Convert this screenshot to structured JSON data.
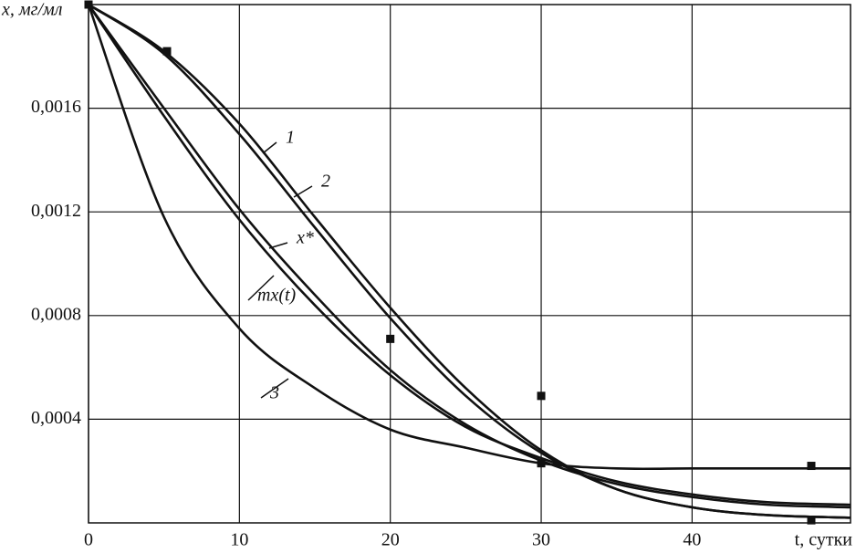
{
  "chart_data": {
    "type": "line",
    "x_label": "t, сутки",
    "y_label": "x, мг/мл",
    "xlim": [
      0,
      50.5
    ],
    "ylim": [
      0,
      0.002
    ],
    "xticks": [
      0,
      10,
      20,
      30,
      40
    ],
    "yticks": [
      {
        "value": 0.0004,
        "label": "0,0004"
      },
      {
        "value": 0.0008,
        "label": "0,0008"
      },
      {
        "value": 0.0012,
        "label": "0,0012"
      },
      {
        "value": 0.0016,
        "label": "0,0016"
      }
    ],
    "grid": true,
    "x": [
      0,
      5,
      10,
      15,
      20,
      25,
      30,
      35,
      40,
      45,
      50.5
    ],
    "series": [
      {
        "name": "1",
        "color": "#111111",
        "values": [
          0.002,
          0.00182,
          0.00154,
          0.00118,
          0.00083,
          0.00052,
          0.00028,
          0.00013,
          6e-05,
          3e-05,
          2e-05
        ]
      },
      {
        "name": "2",
        "color": "#111111",
        "values": [
          0.002,
          0.00181,
          0.0015,
          0.00114,
          0.00079,
          0.00049,
          0.00027,
          0.00013,
          6e-05,
          3e-05,
          2e-05
        ]
      },
      {
        "name": "x*",
        "color": "#111111",
        "values": [
          0.002,
          0.0016,
          0.00121,
          0.00088,
          0.00059,
          0.00038,
          0.00024,
          0.00015,
          0.0001,
          7e-05,
          6e-05
        ]
      },
      {
        "name": "mx(t)",
        "color": "#111111",
        "values": [
          0.002,
          0.00157,
          0.00117,
          0.00084,
          0.00057,
          0.00037,
          0.00025,
          0.00016,
          0.00011,
          8e-05,
          7e-05
        ]
      },
      {
        "name": "3",
        "color": "#111111",
        "values": [
          0.002,
          0.00118,
          0.00075,
          0.00052,
          0.00036,
          0.00029,
          0.00023,
          0.00021,
          0.00021,
          0.00021,
          0.00021
        ]
      }
    ],
    "points": {
      "color": "#111111",
      "x": [
        0,
        5.2,
        20,
        30,
        30,
        47.9,
        47.9
      ],
      "values": [
        0.002,
        0.00182,
        0.00071,
        0.00049,
        0.00023,
        0.00022,
        1e-05
      ]
    }
  }
}
